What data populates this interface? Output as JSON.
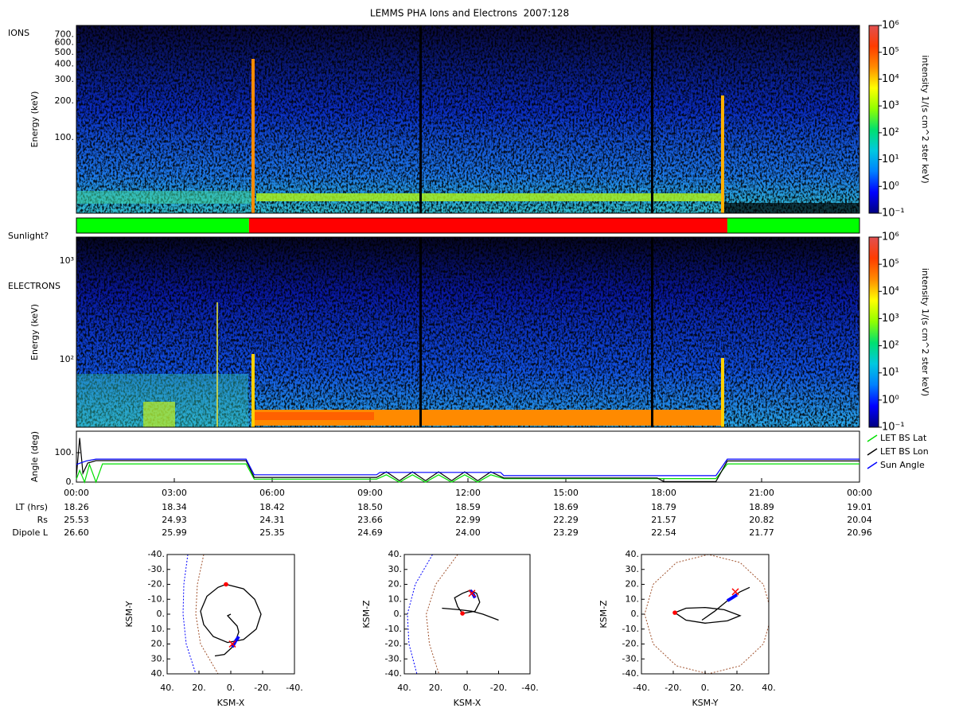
{
  "title": "LEMMS PHA Ions and Electrons  2007:128",
  "chart_data": [
    {
      "type": "spectrogram",
      "label": "IONS",
      "ylabel": "Energy (keV)",
      "log": true,
      "xlim": [
        0,
        24
      ],
      "ylim": [
        24,
        830
      ],
      "yticks": [
        {
          "value": 100,
          "label": "100."
        },
        {
          "value": 200,
          "label": "200."
        },
        {
          "value": 300,
          "label": "300."
        },
        {
          "value": 400,
          "label": "400."
        },
        {
          "value": 500,
          "label": "500."
        },
        {
          "value": 600,
          "label": "600."
        },
        {
          "value": 700,
          "label": "700."
        }
      ],
      "clabel": "intensity 1/(s cm^2 ster keV)",
      "clim": [
        0.1,
        1000000
      ],
      "cticks": [
        {
          "value": 0.1,
          "label": "10⁻¹"
        },
        {
          "value": 1,
          "label": "10⁰"
        },
        {
          "value": 10,
          "label": "10¹"
        },
        {
          "value": 100,
          "label": "10²"
        },
        {
          "value": 1000,
          "label": "10³"
        },
        {
          "value": 10000,
          "label": "10⁴"
        },
        {
          "value": 100000,
          "label": "10⁵"
        },
        {
          "value": 1000000,
          "label": "10⁶"
        }
      ],
      "colorscale": [
        "#000080",
        "#0000ff",
        "#0080ff",
        "#00c8e0",
        "#00e070",
        "#90ff00",
        "#ffff00",
        "#ff8c00",
        "#ff3c00",
        "#e05050"
      ]
    },
    {
      "type": "timeline",
      "label": "Sunlight?",
      "xlim": [
        0,
        24
      ],
      "segments": [
        {
          "start": 0,
          "end": 5.29,
          "color": "#00ff00"
        },
        {
          "start": 5.29,
          "end": 19.95,
          "color": "#ff0000"
        },
        {
          "start": 19.95,
          "end": 24,
          "color": "#00ff00"
        }
      ]
    },
    {
      "type": "spectrogram",
      "label": "ELECTRONS",
      "ylabel": "Energy (keV)",
      "log": true,
      "xlim": [
        0,
        24
      ],
      "ylim": [
        20.7,
        1745
      ],
      "yticks": [
        {
          "value": 100,
          "label": "10²"
        },
        {
          "value": 1000,
          "label": "10³"
        }
      ],
      "clabel": "intensity 1/(s cm^2 ster keV)",
      "clim": [
        0.1,
        1000000
      ],
      "cticks": [
        {
          "value": 0.1,
          "label": "10⁻¹"
        },
        {
          "value": 1,
          "label": "10⁰"
        },
        {
          "value": 10,
          "label": "10¹"
        },
        {
          "value": 100,
          "label": "10²"
        },
        {
          "value": 1000,
          "label": "10³"
        },
        {
          "value": 10000,
          "label": "10⁴"
        },
        {
          "value": 100000,
          "label": "10⁵"
        },
        {
          "value": 1000000,
          "label": "10⁶"
        }
      ],
      "colorscale": [
        "#000080",
        "#0000ff",
        "#0080ff",
        "#00c8e0",
        "#00e070",
        "#90ff00",
        "#ffff00",
        "#ff8c00",
        "#ff3c00",
        "#e05050"
      ]
    },
    {
      "type": "line",
      "ylabel": "Angle (deg)",
      "xlim": [
        0,
        24
      ],
      "ylim": [
        0,
        173
      ],
      "legend": "right",
      "yticks": [
        {
          "value": 0,
          "label": "0."
        },
        {
          "value": 100,
          "label": "100."
        }
      ],
      "xticks": [
        {
          "value": 0,
          "label": "00:00"
        },
        {
          "value": 3,
          "label": "03:00"
        },
        {
          "value": 6,
          "label": "06:00"
        },
        {
          "value": 9,
          "label": "09:00"
        },
        {
          "value": 12,
          "label": "12:00"
        },
        {
          "value": 15,
          "label": "15:00"
        },
        {
          "value": 18,
          "label": "18:00"
        },
        {
          "value": 21,
          "label": "21:00"
        },
        {
          "value": 24,
          "label": "00:00"
        }
      ],
      "series": [
        {
          "name": "LET BS Lat",
          "color": "#00e000",
          "x": [
            0,
            0.1,
            0.25,
            0.4,
            0.6,
            0.8,
            5.2,
            5.45,
            9.2,
            9.5,
            9.9,
            10.3,
            10.7,
            11.1,
            11.5,
            11.9,
            12.3,
            12.7,
            13.1,
            19.6,
            19.95,
            24
          ],
          "values": [
            10,
            40,
            0,
            60,
            0,
            62,
            62,
            10,
            10,
            25,
            0,
            25,
            0,
            25,
            0,
            25,
            0,
            25,
            12,
            12,
            62,
            62
          ]
        },
        {
          "name": "LET BS Lon",
          "color": "#000000",
          "x": [
            0,
            0.1,
            0.2,
            0.35,
            0.6,
            5.2,
            5.45,
            9.2,
            9.5,
            9.9,
            10.3,
            10.7,
            11.1,
            11.5,
            11.9,
            12.3,
            12.7,
            13.1,
            17.8,
            18.0,
            19.6,
            19.95,
            24
          ],
          "values": [
            20,
            150,
            30,
            65,
            73,
            73,
            16,
            16,
            35,
            5,
            35,
            5,
            35,
            5,
            35,
            5,
            35,
            14,
            14,
            2,
            2,
            72,
            72
          ]
        },
        {
          "name": "Sun Angle",
          "color": "#0000ff",
          "x": [
            0,
            0.3,
            0.6,
            5.2,
            5.45,
            9.2,
            9.3,
            13.0,
            13.1,
            19.6,
            19.95,
            24
          ],
          "values": [
            60,
            72,
            78,
            78,
            25,
            25,
            33,
            33,
            22,
            22,
            78,
            78
          ]
        }
      ]
    },
    {
      "type": "orbit",
      "xlabel": "KSM-X",
      "ylabel": "KSM-Y",
      "xlim": [
        40,
        -40
      ],
      "ylim": [
        40,
        -40
      ],
      "xticks": [
        {
          "value": 40,
          "label": "40."
        },
        {
          "value": 20,
          "label": "20."
        },
        {
          "value": 0,
          "label": "0."
        },
        {
          "value": -20,
          "label": "-20."
        },
        {
          "value": -40,
          "label": "-40."
        }
      ],
      "yticks": [
        {
          "value": -40,
          "label": "-40."
        },
        {
          "value": -30,
          "label": "-30."
        },
        {
          "value": -20,
          "label": "-20."
        },
        {
          "value": -10,
          "label": "-10."
        },
        {
          "value": 0,
          "label": "0."
        },
        {
          "value": 10,
          "label": "10."
        },
        {
          "value": 20,
          "label": "20."
        },
        {
          "value": 30,
          "label": "30."
        },
        {
          "value": 40,
          "label": "40."
        }
      ],
      "series": [
        {
          "color": "#0000ff",
          "dash": true,
          "x": [
            27,
            29.5,
            30,
            28,
            22
          ],
          "y": [
            -40,
            -20,
            0,
            20,
            40
          ]
        },
        {
          "color": "#a0522d",
          "dash": true,
          "x": [
            17,
            21,
            22,
            19,
            8
          ],
          "y": [
            -40,
            -20,
            0,
            20,
            40
          ]
        },
        {
          "color": "#000000",
          "dash": false,
          "x": [
            3,
            -8,
            -15,
            -19,
            -16,
            -8,
            2,
            11,
            17,
            19,
            15,
            8,
            3,
            null,
            10,
            4,
            -1,
            -3,
            -5,
            -4,
            2,
            0
          ],
          "y": [
            -20,
            -17,
            -10,
            0,
            10,
            17,
            19,
            15,
            7,
            -2,
            -12,
            -18,
            -20,
            null,
            28,
            27,
            22,
            18,
            12,
            8,
            1,
            0
          ]
        },
        {
          "color": "#0000ff",
          "dash": false,
          "x": [
            -1,
            -3,
            -5
          ],
          "y": [
            22,
            18,
            15
          ]
        }
      ],
      "markers": [
        {
          "shape": "dot",
          "color": "#ff0000",
          "x": 3,
          "y": -20
        },
        {
          "shape": "cross",
          "color": "#ff0000",
          "x": -1,
          "y": 20
        }
      ]
    },
    {
      "type": "orbit",
      "xlabel": "KSM-X",
      "ylabel": "KSM-Z",
      "xlim": [
        40,
        -40
      ],
      "ylim": [
        -40,
        40
      ],
      "xticks": [
        {
          "value": 40,
          "label": "40."
        },
        {
          "value": 20,
          "label": "20."
        },
        {
          "value": 0,
          "label": "0."
        },
        {
          "value": -20,
          "label": "-20."
        },
        {
          "value": -40,
          "label": "-40."
        }
      ],
      "yticks": [
        {
          "value": 40,
          "label": "40."
        },
        {
          "value": 30,
          "label": "30."
        },
        {
          "value": 20,
          "label": "20."
        },
        {
          "value": 10,
          "label": "10."
        },
        {
          "value": 0,
          "label": "0."
        },
        {
          "value": -10,
          "label": "-10."
        },
        {
          "value": -20,
          "label": "-20."
        },
        {
          "value": -30,
          "label": "-30."
        },
        {
          "value": -40,
          "label": "-40."
        }
      ],
      "series": [
        {
          "color": "#0000ff",
          "dash": true,
          "x": [
            22,
            33,
            38,
            37,
            32
          ],
          "y": [
            40,
            20,
            0,
            -20,
            -40
          ]
        },
        {
          "color": "#a0522d",
          "dash": true,
          "x": [
            6,
            20,
            26,
            24,
            18
          ],
          "y": [
            40,
            20,
            0,
            -20,
            -40
          ]
        },
        {
          "color": "#000000",
          "dash": false,
          "x": [
            16,
            5,
            -3,
            -10,
            -20,
            null,
            3,
            -5,
            -8,
            -6,
            -2,
            3,
            8,
            6,
            3
          ],
          "y": [
            4,
            3,
            2,
            0,
            -4,
            null,
            0.5,
            2,
            8,
            14,
            16,
            14,
            11,
            5,
            0.5
          ]
        },
        {
          "color": "#0000ff",
          "dash": false,
          "x": [
            -2,
            -4,
            -5
          ],
          "y": [
            16,
            13,
            11
          ]
        }
      ],
      "markers": [
        {
          "shape": "dot",
          "color": "#ff0000",
          "x": 3,
          "y": 0.5
        },
        {
          "shape": "cross",
          "color": "#ff0000",
          "x": -3,
          "y": 14
        }
      ]
    },
    {
      "type": "orbit",
      "xlabel": "KSM-Y",
      "ylabel": "KSM-Z",
      "xlim": [
        -40,
        40
      ],
      "ylim": [
        -40,
        40
      ],
      "xticks": [
        {
          "value": -40,
          "label": "-40."
        },
        {
          "value": -20,
          "label": "-20."
        },
        {
          "value": 0,
          "label": "0."
        },
        {
          "value": 20,
          "label": "20."
        },
        {
          "value": 40,
          "label": "40."
        }
      ],
      "yticks": [
        {
          "value": 40,
          "label": "40."
        },
        {
          "value": 30,
          "label": "30."
        },
        {
          "value": 20,
          "label": "20."
        },
        {
          "value": 10,
          "label": "10."
        },
        {
          "value": 0,
          "label": "0."
        },
        {
          "value": -10,
          "label": "-10."
        },
        {
          "value": -20,
          "label": "-20."
        },
        {
          "value": -30,
          "label": "-30."
        },
        {
          "value": -40,
          "label": "-40."
        }
      ],
      "series": [
        {
          "color": "#a0522d",
          "dash": true,
          "x": [
            42,
            36.6,
            22,
            2,
            -18,
            -32.6,
            -38,
            -32.6,
            -18,
            2,
            22,
            36.6,
            42
          ],
          "y": [
            0,
            20,
            34.6,
            40,
            34.6,
            20,
            0,
            -20,
            -34.6,
            -40,
            -34.6,
            -20,
            0
          ]
        },
        {
          "color": "#000000",
          "dash": false,
          "x": [
            -19,
            -12,
            0,
            12,
            22,
            14,
            0,
            -12,
            -19,
            null,
            -2,
            6,
            14,
            22,
            28
          ],
          "y": [
            1,
            4,
            4.5,
            3,
            -1,
            -4.5,
            -6,
            -4,
            1,
            null,
            -4,
            2,
            9,
            15,
            18
          ]
        },
        {
          "color": "#0000ff",
          "dash": false,
          "x": [
            14,
            17,
            20
          ],
          "y": [
            9,
            11,
            13
          ]
        }
      ],
      "markers": [
        {
          "shape": "dot",
          "color": "#ff0000",
          "x": -19,
          "y": 1
        },
        {
          "shape": "cross",
          "color": "#ff0000",
          "x": 19,
          "y": 15
        }
      ]
    }
  ],
  "ephemeris": {
    "labels": [
      "LT (hrs)",
      "Rs",
      "Dipole L"
    ],
    "rows": [
      [
        "18.26",
        "18.34",
        "18.42",
        "18.50",
        "18.59",
        "18.69",
        "18.79",
        "18.89",
        "19.01"
      ],
      [
        "25.53",
        "24.93",
        "24.31",
        "23.66",
        "22.99",
        "22.29",
        "21.57",
        "20.82",
        "20.04"
      ],
      [
        "26.60",
        "25.99",
        "25.35",
        "24.69",
        "24.00",
        "23.29",
        "22.54",
        "21.77",
        "20.96"
      ]
    ]
  }
}
